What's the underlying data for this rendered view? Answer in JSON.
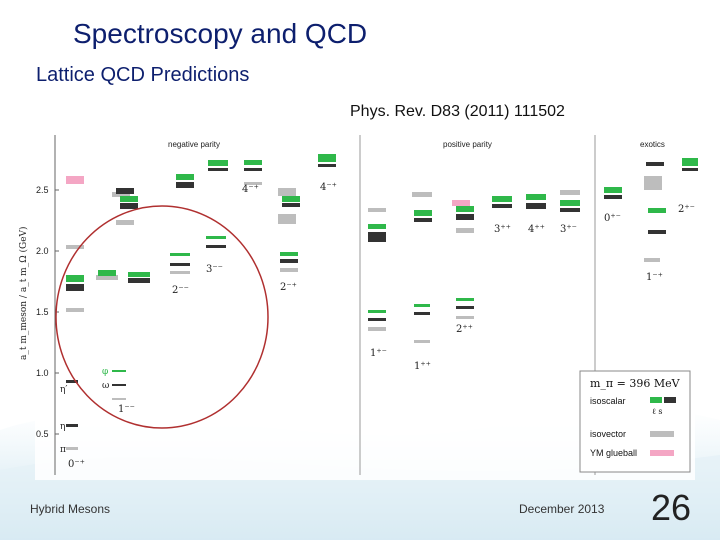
{
  "slide": {
    "title": "Spectroscopy and QCD",
    "subtitle": "Lattice QCD Predictions",
    "citation": "Phys. Rev. D83 (2011) 111502",
    "footer_left": "Hybrid Mesons",
    "footer_date": "December 2013",
    "page_number": "26"
  },
  "figure": {
    "sections": {
      "negative_parity": "negative parity",
      "positive_parity": "positive parity",
      "exotics": "exotics"
    },
    "y_axis_label": "a_t m_meson / a_t m_Ω  (GeV)",
    "y_ticks": [
      "0.5",
      "1.0",
      "1.5",
      "2.0",
      "2.5"
    ],
    "jpc_labels": {
      "n0": "0⁻⁺",
      "n1": "1⁻⁻",
      "n2": "2⁻⁻",
      "n3": "2⁻⁺",
      "n4": "3⁻⁻",
      "n5": "4⁻⁺",
      "p1": "1⁺⁻",
      "p2": "1⁺⁺",
      "p3": "2⁺⁺",
      "p4": "3⁺⁺",
      "p5": "4⁺⁺",
      "p6": "3⁺⁻",
      "e1": "0⁺⁻",
      "e2": "2⁺⁻",
      "e3": "1⁻⁺"
    },
    "state_labels": {
      "eta_prime": "η′",
      "eta": "η",
      "pi": "π",
      "phi": "φ",
      "omega": "ω"
    },
    "legend": {
      "mpi": "m_π = 396 MeV",
      "isoscalar": "isoscalar",
      "l_s": "ℓ  s",
      "isovector": "isovector",
      "glueball": "YM glueball"
    },
    "colors": {
      "isoscalar_light": "#2fb84a",
      "isoscalar_strange": "#333333",
      "isovector": "#bdbdbd",
      "glueball": "#f4a6c4",
      "highlight_circle": "#b03030"
    }
  }
}
